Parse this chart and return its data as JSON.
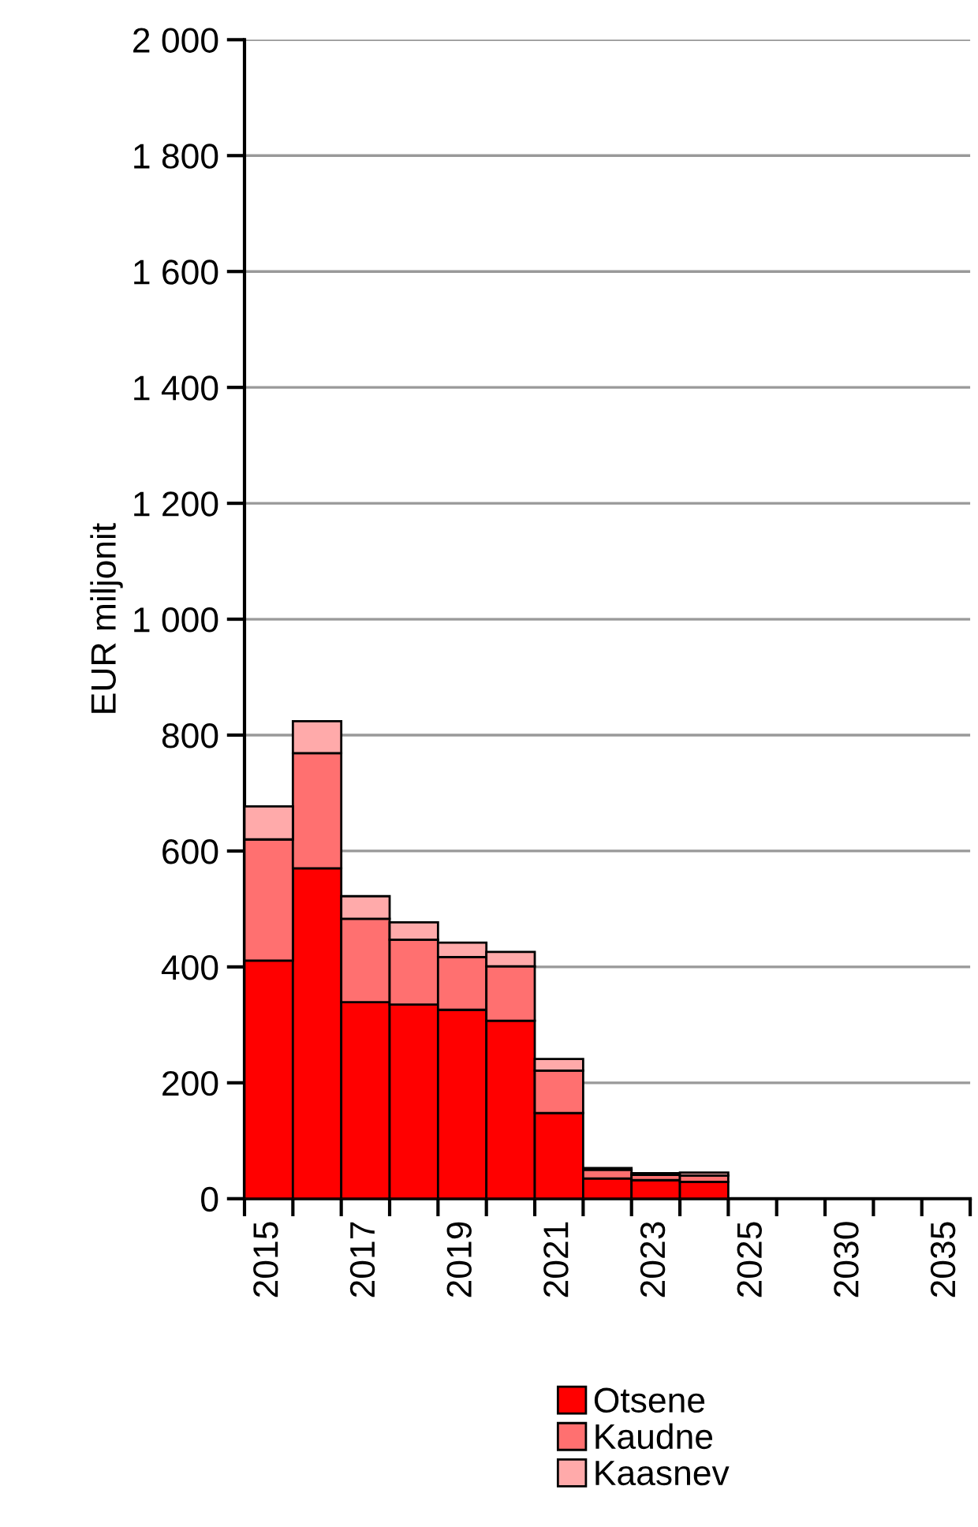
{
  "chart_data": {
    "type": "bar",
    "stacked": true,
    "ylabel": "EUR miljonit",
    "categories": [
      "2015",
      null,
      "2017",
      null,
      "2019",
      null,
      "2021",
      null,
      "2023",
      null,
      "2025",
      null,
      "2030",
      null,
      "2035"
    ],
    "series": [
      {
        "name": "Otsene",
        "color": "#ff0000",
        "values": [
          411,
          570,
          339,
          335,
          326,
          307,
          148,
          35,
          32,
          29,
          null,
          null,
          null,
          null,
          null
        ]
      },
      {
        "name": "Kaudne",
        "color": "#ff7070",
        "values": [
          209,
          199,
          144,
          112,
          91,
          94,
          73,
          15,
          9,
          11,
          null,
          null,
          null,
          null,
          null
        ]
      },
      {
        "name": "Kaasnev",
        "color": "#ffaaaa",
        "values": [
          57,
          55,
          39,
          30,
          25,
          25,
          20,
          3,
          3,
          5,
          null,
          null,
          null,
          null,
          null
        ]
      }
    ],
    "ylim": [
      0,
      2000
    ],
    "yticks": [
      0,
      200,
      400,
      600,
      800,
      {
        "value": 1000,
        "label": "1 000"
      },
      {
        "value": 1200,
        "label": "1 200"
      },
      {
        "value": 1400,
        "label": "1 400"
      },
      {
        "value": 1600,
        "label": "1 600"
      },
      {
        "value": 1800,
        "label": "1 800"
      },
      {
        "value": 2000,
        "label": "2 000"
      }
    ],
    "grid": "y",
    "legend": "bottom"
  }
}
